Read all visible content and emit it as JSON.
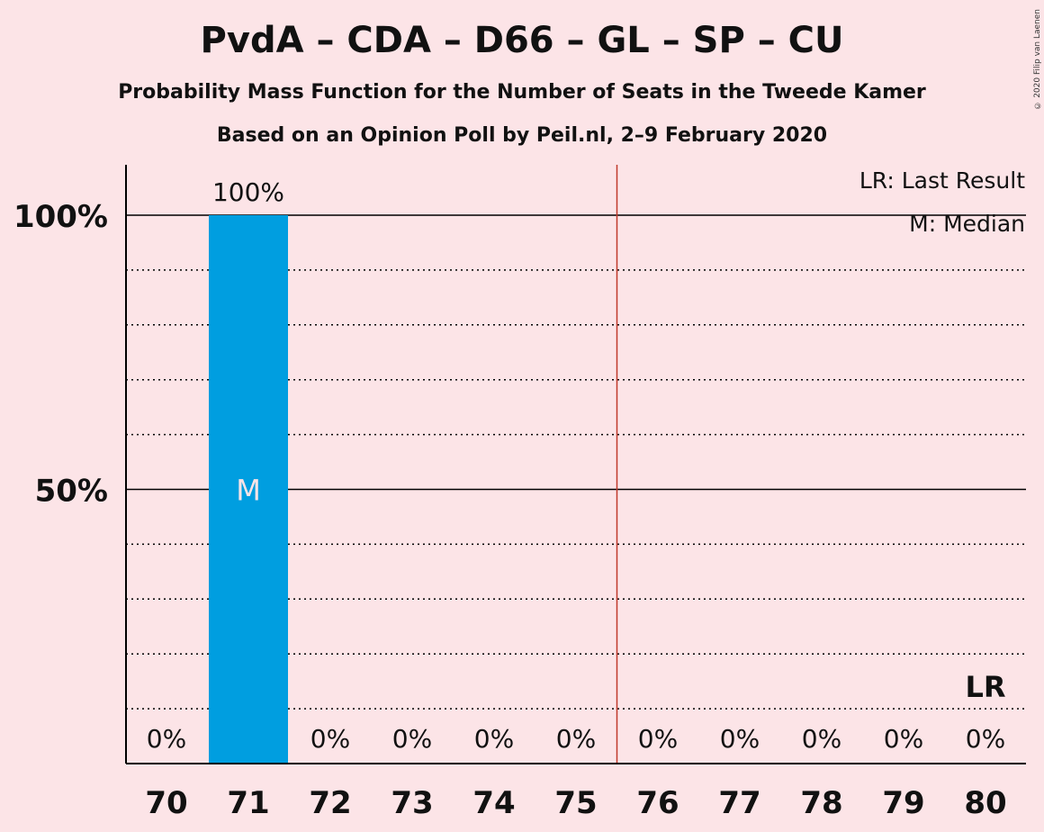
{
  "title": "PvdA – CDA – D66 – GL – SP – CU",
  "subtitle": "Probability Mass Function for the Number of Seats in the Tweede Kamer",
  "source": "Based on an Opinion Poll by Peil.nl, 2–9 February 2020",
  "copyright": "© 2020 Filip van Laenen",
  "legend": {
    "last_result": "LR: Last Result",
    "median": "M: Median"
  },
  "colors": {
    "background": "#fce4e7",
    "bar": "#009ee0",
    "majority_line": "#c0392b",
    "axis": "#000000"
  },
  "chart_data": {
    "type": "bar",
    "categories": [
      "70",
      "71",
      "72",
      "73",
      "74",
      "75",
      "76",
      "77",
      "78",
      "79",
      "80"
    ],
    "values": [
      0,
      100,
      0,
      0,
      0,
      0,
      0,
      0,
      0,
      0,
      0
    ],
    "value_labels": [
      "0%",
      "100%",
      "0%",
      "0%",
      "0%",
      "0%",
      "0%",
      "0%",
      "0%",
      "0%",
      "0%"
    ],
    "ylim": [
      0,
      110
    ],
    "yticks": [
      {
        "value": 50,
        "label": "50%"
      },
      {
        "value": 100,
        "label": "100%"
      }
    ],
    "minor_gridlines": [
      10,
      20,
      30,
      40,
      60,
      70,
      80,
      90
    ],
    "median": {
      "category": "71",
      "label": "M"
    },
    "last_result": {
      "category": "80",
      "label": "LR"
    },
    "majority_threshold": 75.5,
    "legend_position": "top-right"
  }
}
